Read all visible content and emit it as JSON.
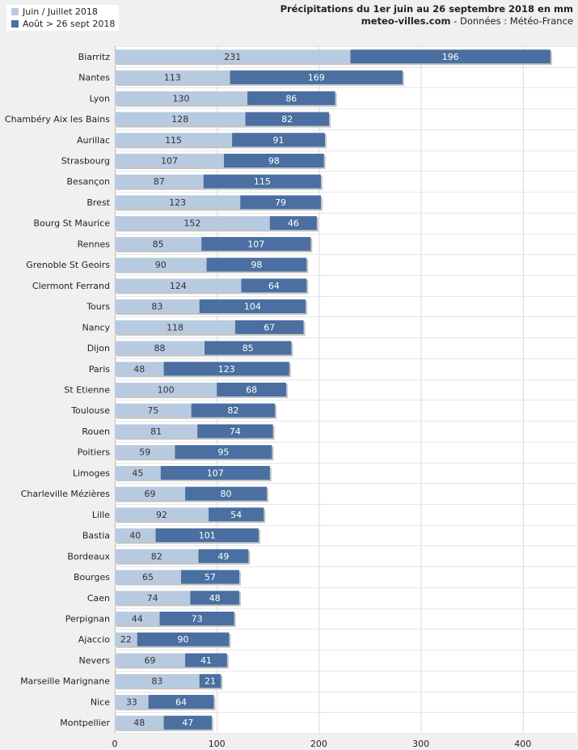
{
  "legend": {
    "items": [
      {
        "label": "Juin / Juillet 2018",
        "color": "#b8cadf"
      },
      {
        "label": "Août > 26 sept 2018",
        "color": "#4a6fa0"
      }
    ]
  },
  "header": {
    "title": "Précipitations du 1er juin au 26 septembre 2018 en mm",
    "site": "meteo-villes.com",
    "source": " - Données : Météo-France"
  },
  "chart_data": {
    "type": "bar",
    "orientation": "horizontal",
    "stacked": true,
    "title": "Précipitations du 1er juin au 26 septembre 2018 en mm",
    "xlabel": "",
    "ylabel": "",
    "xlim": [
      0,
      450
    ],
    "xticks": [
      0,
      100,
      200,
      300,
      400
    ],
    "grid": true,
    "legend_position": "top-left",
    "categories": [
      "Biarritz",
      "Nantes",
      "Lyon",
      "Chambéry Aix les Bains",
      "Aurillac",
      "Strasbourg",
      "Besançon",
      "Brest",
      "Bourg St Maurice",
      "Rennes",
      "Grenoble St Geoirs",
      "Clermont Ferrand",
      "Tours",
      "Nancy",
      "Dijon",
      "Paris",
      "St Etienne",
      "Toulouse",
      "Rouen",
      "Poitiers",
      "Limoges",
      "Charleville Mézières",
      "Lille",
      "Bastia",
      "Bordeaux",
      "Bourges",
      "Caen",
      "Perpignan",
      "Ajaccio",
      "Nevers",
      "Marseille Marignane",
      "Nice",
      "Montpellier"
    ],
    "series": [
      {
        "name": "Juin / Juillet 2018",
        "color": "#b8cadf",
        "values": [
          231,
          113,
          130,
          128,
          115,
          107,
          87,
          123,
          152,
          85,
          90,
          124,
          83,
          118,
          88,
          48,
          100,
          75,
          81,
          59,
          45,
          69,
          92,
          40,
          82,
          65,
          74,
          44,
          22,
          69,
          83,
          33,
          48
        ]
      },
      {
        "name": "Août > 26 sept 2018",
        "color": "#4a6fa0",
        "values": [
          196,
          169,
          86,
          82,
          91,
          98,
          115,
          79,
          46,
          107,
          98,
          64,
          104,
          67,
          85,
          123,
          68,
          82,
          74,
          95,
          107,
          80,
          54,
          101,
          49,
          57,
          48,
          73,
          90,
          41,
          21,
          64,
          47
        ]
      }
    ]
  }
}
